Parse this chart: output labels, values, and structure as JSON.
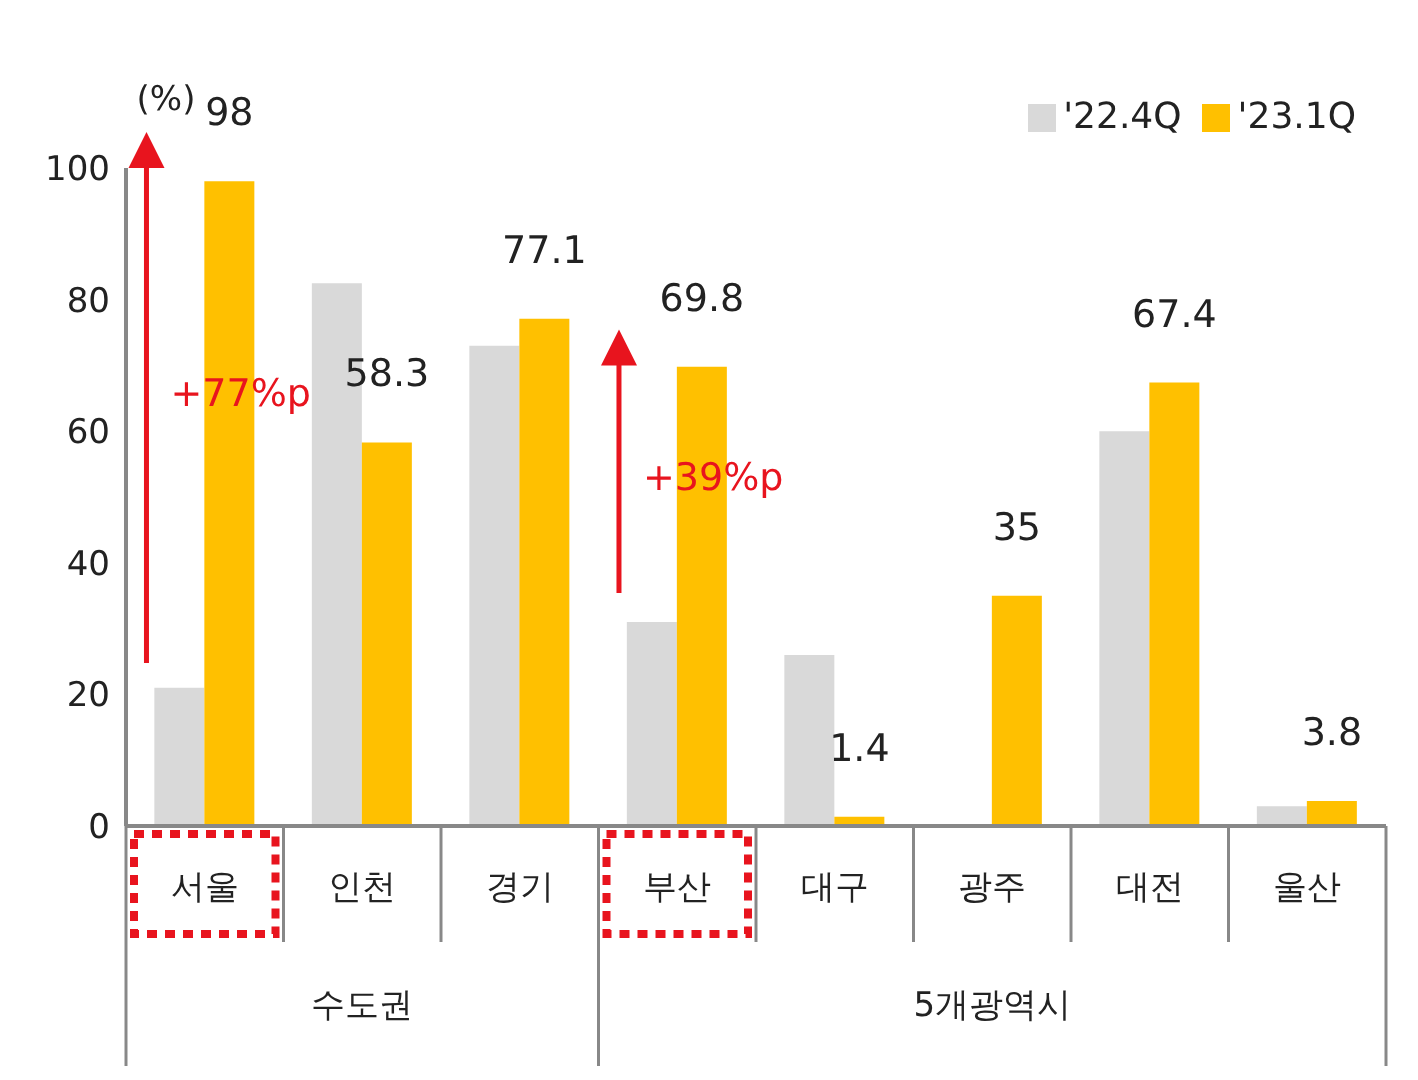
{
  "chart_data": {
    "type": "bar",
    "ylabel": "(%)",
    "categories": [
      "서울",
      "인천",
      "경기",
      "부산",
      "대구",
      "광주",
      "대전",
      "울산"
    ],
    "series": [
      {
        "name": "'22.4Q",
        "color": "#d9d9d9",
        "values": [
          21,
          82.5,
          73,
          31,
          26,
          0,
          60,
          3
        ]
      },
      {
        "name": "'23.1Q",
        "color": "#ffc000",
        "values": [
          98,
          58.3,
          77.1,
          69.8,
          1.4,
          35,
          67.4,
          3.8
        ],
        "value_labels": [
          "98",
          "58.3",
          "77.1",
          "69.8",
          "1.4",
          "35",
          "67.4",
          "3.8"
        ]
      }
    ],
    "ylim": [
      0,
      100
    ],
    "yticks": [
      0,
      20,
      40,
      60,
      80,
      100
    ],
    "grid": false,
    "legend": "top right",
    "annotations": [
      {
        "text": "+77%p",
        "x": "서울",
        "y": 60
      },
      {
        "text": "+39%p",
        "x": "부산",
        "y": 48
      },
      "수도권",
      "5개광역시"
    ]
  }
}
